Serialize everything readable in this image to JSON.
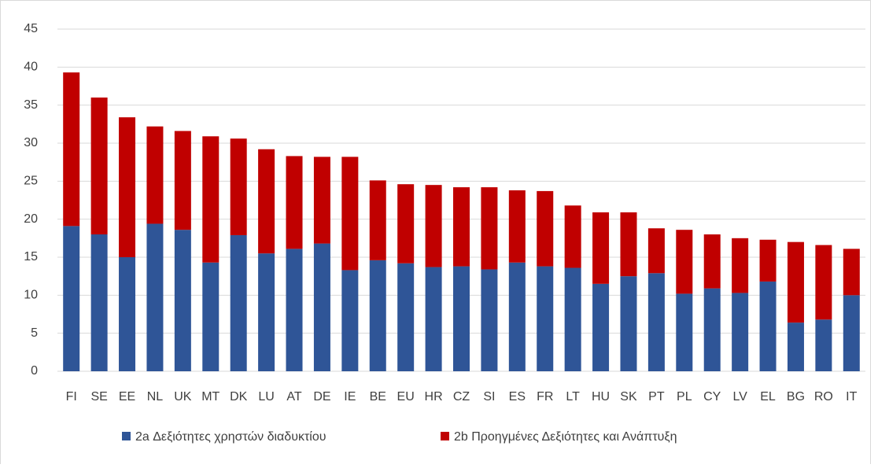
{
  "chart_data": {
    "type": "stacked_bar",
    "categories": [
      "FI",
      "SE",
      "EE",
      "NL",
      "UK",
      "MT",
      "DK",
      "LU",
      "AT",
      "DE",
      "IE",
      "BE",
      "EU",
      "HR",
      "CZ",
      "SI",
      "ES",
      "FR",
      "LT",
      "HU",
      "SK",
      "PT",
      "PL",
      "CY",
      "LV",
      "EL",
      "BG",
      "RO",
      "IT"
    ],
    "series": [
      {
        "name": "2a Δεξιότητες χρηστών διαδυκτίου",
        "color": "#2f5597",
        "values": [
          19.1,
          18.0,
          15.0,
          19.4,
          18.6,
          14.3,
          17.9,
          15.5,
          16.1,
          16.8,
          13.3,
          14.6,
          14.2,
          13.7,
          13.8,
          13.4,
          14.3,
          13.8,
          13.6,
          11.5,
          12.5,
          12.9,
          10.2,
          10.9,
          10.3,
          11.8,
          6.4,
          6.8,
          10.0
        ]
      },
      {
        "name": "2b Προηγμένες Δεξιότητες και Ανάπτυξη",
        "color": "#c00000",
        "values": [
          20.2,
          18.0,
          18.4,
          12.8,
          13.0,
          16.6,
          12.7,
          13.7,
          12.2,
          11.4,
          14.9,
          10.5,
          10.4,
          10.8,
          10.4,
          10.8,
          9.5,
          9.9,
          8.2,
          9.4,
          8.4,
          5.9,
          8.4,
          7.1,
          7.2,
          5.5,
          10.6,
          9.8,
          6.1
        ]
      }
    ],
    "ylim": [
      0,
      45
    ],
    "yticks": [
      0,
      5,
      10,
      15,
      20,
      25,
      30,
      35,
      40,
      45
    ],
    "grid": true
  }
}
